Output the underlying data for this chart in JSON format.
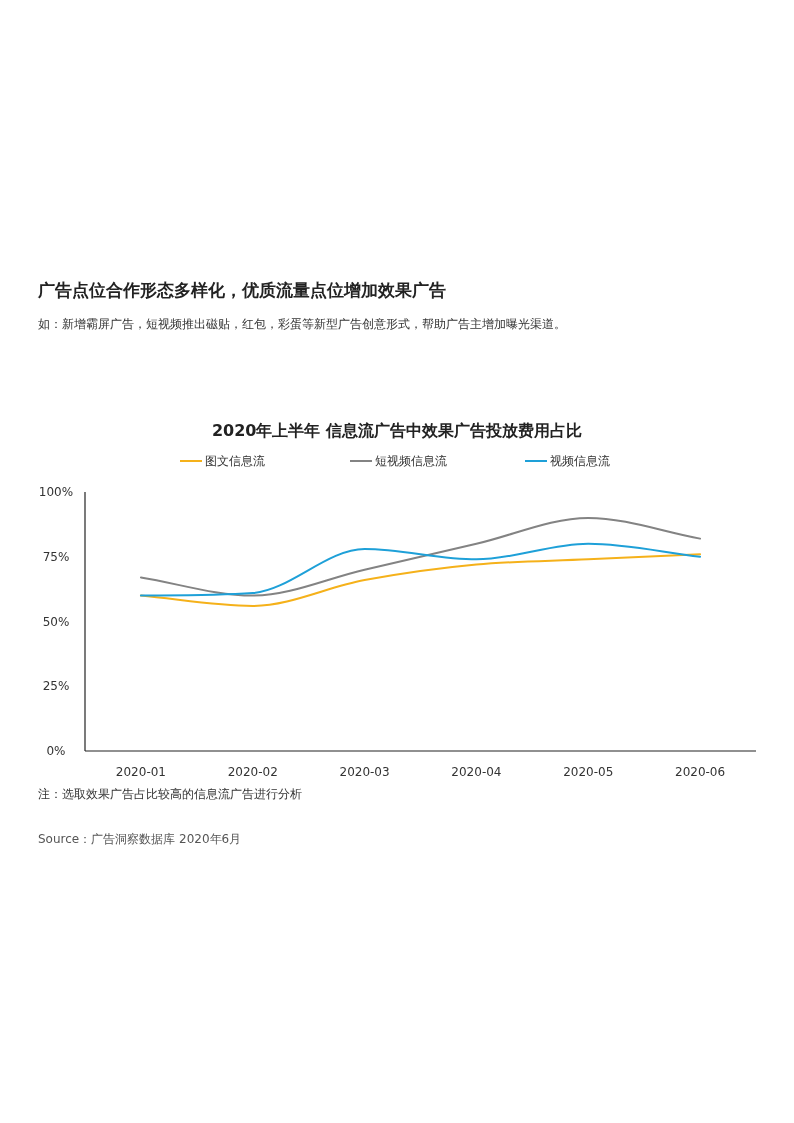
{
  "chart_data": {
    "type": "line",
    "title": "2020年上半年 信息流广告中效果广告投放费用占比",
    "annotations": [
      "广告点位合作形态多样化，优质流量点位增加效果广告",
      "如：新增霸屏广告，短视频推出磁贴，红包，彩蛋等新型广告创意形式，帮助广告主增加曝光渠道。",
      "注：选取效果广告占比较高的信息流广告进行分析",
      "Source：广告洞察数据库 2020年6月"
    ],
    "categories": [
      "2020-01",
      "2020-02",
      "2020-03",
      "2020-04",
      "2020-05",
      "2020-06"
    ],
    "series": [
      {
        "name": "图文信息流",
        "color": "#f5b11a",
        "values": [
          60,
          56,
          66,
          72,
          74,
          76
        ]
      },
      {
        "name": "短视频信息流",
        "color": "#838383",
        "values": [
          67,
          60,
          70,
          80,
          90,
          82
        ]
      },
      {
        "name": "视频信息流",
        "color": "#1ea0d8",
        "values": [
          60,
          61,
          78,
          74,
          80,
          75
        ]
      }
    ],
    "ylim": [
      0,
      100
    ],
    "yticks": [
      {
        "value": 0,
        "label": "0%"
      },
      {
        "value": 25,
        "label": "25%"
      },
      {
        "value": 50,
        "label": "50%"
      },
      {
        "value": 75,
        "label": "75%"
      },
      {
        "value": 100,
        "label": "100%"
      }
    ],
    "grid": false,
    "legend": "top",
    "marker": "none",
    "line_style": "solid"
  }
}
